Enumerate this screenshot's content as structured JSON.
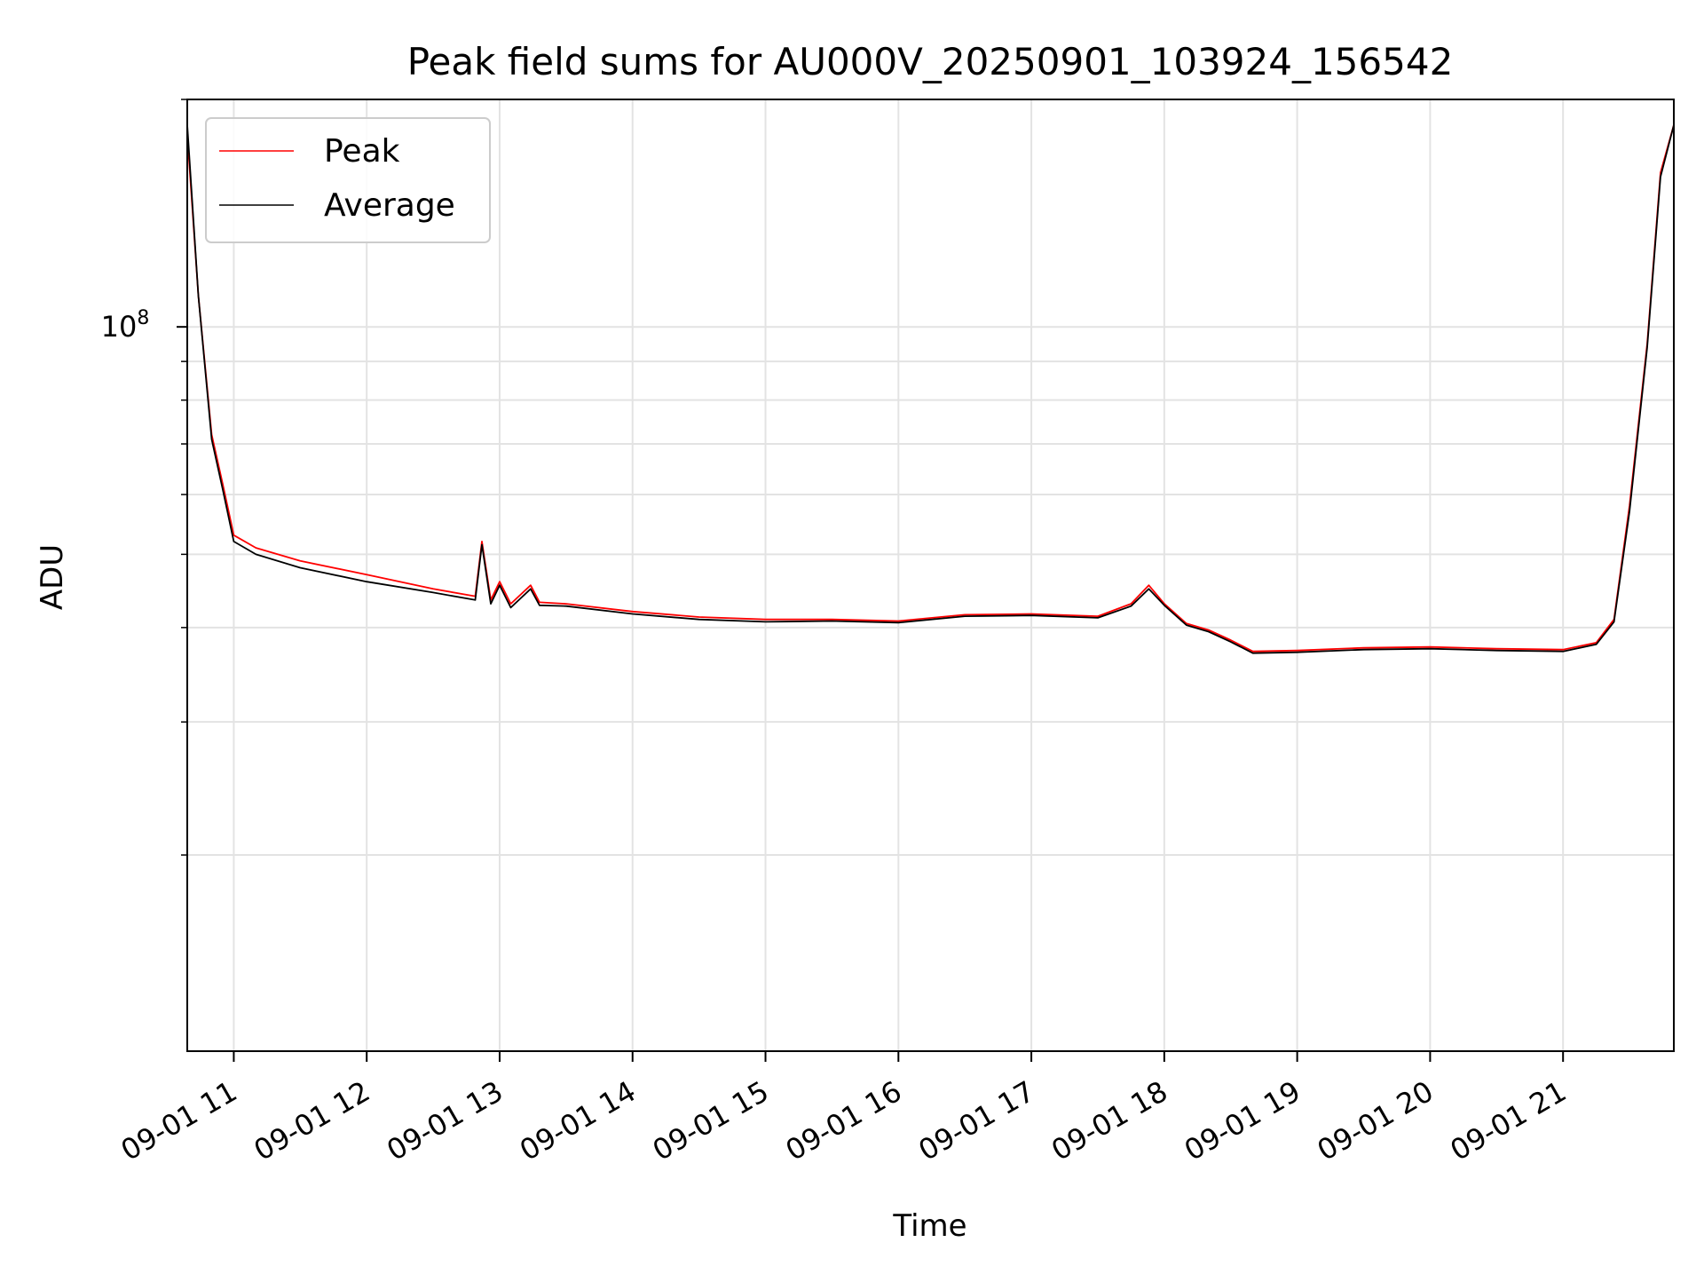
{
  "chart_data": {
    "type": "line",
    "title": "Peak field sums for AU000V_20250901_103924_156542",
    "xlabel": "Time",
    "ylabel": "ADU",
    "yscale": "log",
    "grid": true,
    "legend_position": "top-left",
    "xlim": [
      "2025-09-01 10:39",
      "2025-09-01 21:50"
    ],
    "ylim": [
      11000000,
      200000000
    ],
    "x_tick_labels": [
      "09-01 11",
      "09-01 12",
      "09-01 13",
      "09-01 14",
      "09-01 15",
      "09-01 16",
      "09-01 17",
      "09-01 18",
      "09-01 19",
      "09-01 20",
      "09-01 21"
    ],
    "x_tick_times": [
      "2025-09-01 11:00",
      "2025-09-01 12:00",
      "2025-09-01 13:00",
      "2025-09-01 14:00",
      "2025-09-01 15:00",
      "2025-09-01 16:00",
      "2025-09-01 17:00",
      "2025-09-01 18:00",
      "2025-09-01 19:00",
      "2025-09-01 20:00",
      "2025-09-01 21:00"
    ],
    "y_major_ticks": [
      {
        "value": 100000000,
        "base": "10",
        "exp": "8"
      }
    ],
    "y_minor_ticks": [
      20000000,
      30000000,
      40000000,
      50000000,
      60000000,
      70000000,
      80000000,
      90000000,
      200000000
    ],
    "series": [
      {
        "name": "Peak",
        "color": "#ff0000",
        "x": [
          "2025-09-01 10:39",
          "2025-09-01 10:44",
          "2025-09-01 10:50",
          "2025-09-01 10:55",
          "2025-09-01 11:00",
          "2025-09-01 11:10",
          "2025-09-01 11:30",
          "2025-09-01 12:00",
          "2025-09-01 12:30",
          "2025-09-01 12:49",
          "2025-09-01 12:52",
          "2025-09-01 12:56",
          "2025-09-01 13:00",
          "2025-09-01 13:05",
          "2025-09-01 13:14",
          "2025-09-01 13:18",
          "2025-09-01 13:30",
          "2025-09-01 14:00",
          "2025-09-01 14:30",
          "2025-09-01 15:00",
          "2025-09-01 15:30",
          "2025-09-01 16:00",
          "2025-09-01 16:30",
          "2025-09-01 17:00",
          "2025-09-01 17:30",
          "2025-09-01 17:45",
          "2025-09-01 17:53",
          "2025-09-01 18:00",
          "2025-09-01 18:10",
          "2025-09-01 18:20",
          "2025-09-01 18:30",
          "2025-09-01 18:40",
          "2025-09-01 19:00",
          "2025-09-01 19:30",
          "2025-09-01 20:00",
          "2025-09-01 20:30",
          "2025-09-01 21:00",
          "2025-09-01 21:15",
          "2025-09-01 21:23",
          "2025-09-01 21:30",
          "2025-09-01 21:38",
          "2025-09-01 21:44",
          "2025-09-01 21:50"
        ],
        "y": [
          180000000,
          110000000,
          72000000,
          62000000,
          53000000,
          51000000,
          49000000,
          47000000,
          45000000,
          44000000,
          52000000,
          43500000,
          46000000,
          43000000,
          45500000,
          43200000,
          43000000,
          42000000,
          41300000,
          41000000,
          41000000,
          40800000,
          41600000,
          41700000,
          41400000,
          43000000,
          45500000,
          43000000,
          40500000,
          39700000,
          38500000,
          37200000,
          37300000,
          37600000,
          37700000,
          37500000,
          37400000,
          38200000,
          41000000,
          58000000,
          95000000,
          160000000,
          185000000
        ]
      },
      {
        "name": "Average",
        "color": "#000000",
        "x": [
          "2025-09-01 10:39",
          "2025-09-01 10:44",
          "2025-09-01 10:50",
          "2025-09-01 10:55",
          "2025-09-01 11:00",
          "2025-09-01 11:10",
          "2025-09-01 11:30",
          "2025-09-01 12:00",
          "2025-09-01 12:30",
          "2025-09-01 12:49",
          "2025-09-01 12:52",
          "2025-09-01 12:56",
          "2025-09-01 13:00",
          "2025-09-01 13:05",
          "2025-09-01 13:14",
          "2025-09-01 13:18",
          "2025-09-01 13:30",
          "2025-09-01 14:00",
          "2025-09-01 14:30",
          "2025-09-01 15:00",
          "2025-09-01 15:30",
          "2025-09-01 16:00",
          "2025-09-01 16:30",
          "2025-09-01 17:00",
          "2025-09-01 17:30",
          "2025-09-01 17:45",
          "2025-09-01 17:53",
          "2025-09-01 18:00",
          "2025-09-01 18:10",
          "2025-09-01 18:20",
          "2025-09-01 18:30",
          "2025-09-01 18:40",
          "2025-09-01 19:00",
          "2025-09-01 19:30",
          "2025-09-01 20:00",
          "2025-09-01 20:30",
          "2025-09-01 21:00",
          "2025-09-01 21:15",
          "2025-09-01 21:23",
          "2025-09-01 21:30",
          "2025-09-01 21:38",
          "2025-09-01 21:44",
          "2025-09-01 21:50"
        ],
        "y": [
          185000000,
          110000000,
          71000000,
          61000000,
          52000000,
          50000000,
          48000000,
          46000000,
          44500000,
          43500000,
          51500000,
          43000000,
          45500000,
          42500000,
          45000000,
          42800000,
          42700000,
          41700000,
          41000000,
          40700000,
          40800000,
          40600000,
          41400000,
          41500000,
          41200000,
          42700000,
          45000000,
          42800000,
          40300000,
          39500000,
          38300000,
          37000000,
          37100000,
          37400000,
          37500000,
          37300000,
          37200000,
          38000000,
          40700000,
          57000000,
          94000000,
          158000000,
          185000000
        ]
      }
    ]
  }
}
